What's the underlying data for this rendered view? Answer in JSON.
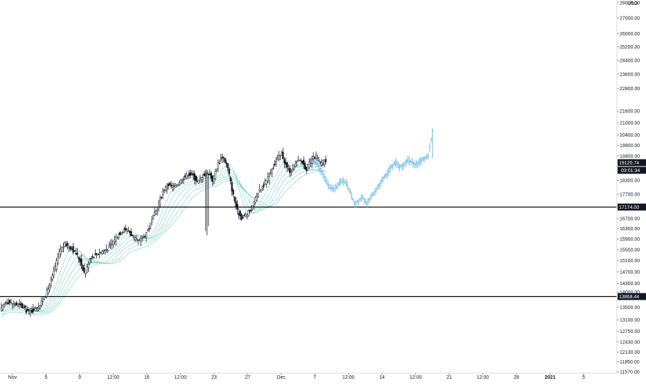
{
  "chart_data": {
    "type": "candlestick",
    "currency": "USD",
    "colors": {
      "background": "#ffffff",
      "candle": "#131722",
      "projection": "#5fb3e6",
      "ribbon": "#5fc8b8",
      "price_line": "#000000",
      "axis_text": "#131722"
    },
    "y_axis": {
      "scale": "log",
      "range": [
        11570,
        28000
      ],
      "position": "right",
      "ticks": [
        "11570.00",
        "11850.00",
        "12130.00",
        "12430.00",
        "12750.00",
        "13100.00",
        "13500.00",
        "14000.00",
        "14300.00",
        "14700.00",
        "15100.00",
        "15500.00",
        "15900.00",
        "16300.00",
        "16700.00",
        "17700.00",
        "18300.00",
        "19400.00",
        "19900.00",
        "20400.00",
        "21000.00",
        "21600.00",
        "22800.00",
        "23600.00",
        "24400.00",
        "25200.00",
        "26000.00",
        "27000.00",
        "28000.00"
      ]
    },
    "x_axis": {
      "labels": [
        {
          "text": "Nov",
          "bold": false
        },
        {
          "text": "5",
          "bold": false
        },
        {
          "text": "9",
          "bold": false
        },
        {
          "text": "12:00",
          "bold": false
        },
        {
          "text": "16",
          "bold": false
        },
        {
          "text": "12:00",
          "bold": false
        },
        {
          "text": "23",
          "bold": false
        },
        {
          "text": "27",
          "bold": false
        },
        {
          "text": "Dec",
          "bold": false
        },
        {
          "text": "7",
          "bold": false
        },
        {
          "text": "12:00",
          "bold": false
        },
        {
          "text": "14",
          "bold": false
        },
        {
          "text": "12:00",
          "bold": false
        },
        {
          "text": "21",
          "bold": false
        },
        {
          "text": "12:00",
          "bold": false
        },
        {
          "text": "28",
          "bold": false
        },
        {
          "text": "2021",
          "bold": true
        },
        {
          "text": "5",
          "bold": false
        }
      ]
    },
    "horizontal_lines": [
      {
        "value": 17174.0,
        "label": "17174.00"
      },
      {
        "value": 13868.44,
        "label": "13868.44"
      }
    ],
    "last_price": {
      "value": 19120.74,
      "label": "19120.74",
      "countdown": "03:01:34"
    },
    "historical_path": [
      13450,
      13700,
      13650,
      13600,
      13550,
      13400,
      13350,
      13500,
      13600,
      13900,
      14300,
      14900,
      15500,
      15700,
      15600,
      15400,
      15100,
      14600,
      15200,
      15300,
      15400,
      15500,
      15600,
      15900,
      16100,
      16300,
      16200,
      15900,
      15800,
      16000,
      16300,
      16800,
      17300,
      17900,
      18100,
      18000,
      18200,
      18400,
      18600,
      18500,
      18200,
      18500,
      18700,
      18300,
      19000,
      19400,
      18900,
      17800,
      17000,
      16700,
      16900,
      17100,
      17700,
      18000,
      18300,
      18800,
      19200,
      19500,
      18900,
      18600,
      19100,
      19200,
      18800,
      19200,
      19400,
      19000,
      19200
    ],
    "projection_path": [
      19200,
      19000,
      18700,
      18300,
      18000,
      17900,
      18100,
      18300,
      18200,
      17800,
      17300,
      17400,
      17600,
      17300,
      17600,
      17800,
      18100,
      18400,
      18600,
      18900,
      19100,
      18900,
      19000,
      19200,
      19100,
      19000,
      19150,
      19300,
      19400,
      20600
    ]
  }
}
